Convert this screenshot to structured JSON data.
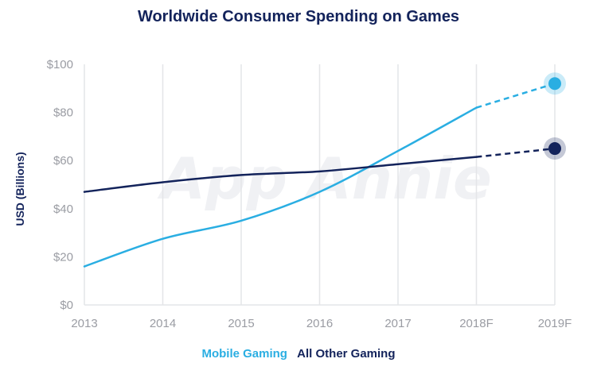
{
  "chart_data": {
    "type": "line",
    "title": "Worldwide Consumer Spending on Games",
    "ylabel": "USD (Billions)",
    "xlabel": "",
    "categories": [
      "2013",
      "2014",
      "2015",
      "2016",
      "2017",
      "2018F",
      "2019F"
    ],
    "y_ticks": [
      "$0",
      "$20",
      "$40",
      "$60",
      "$80",
      "$100"
    ],
    "ylim": [
      0,
      100
    ],
    "grid": "vertical",
    "watermark": "App Annie",
    "legend_position": "bottom",
    "series": [
      {
        "name": "Mobile Gaming",
        "color": "#2aaee2",
        "values": [
          16,
          27.5,
          35,
          47,
          64,
          82,
          92
        ],
        "forecast_from_index": 5
      },
      {
        "name": "All Other Gaming",
        "color": "#13235b",
        "values": [
          47,
          51,
          54,
          55.5,
          58.5,
          61.5,
          65
        ],
        "forecast_from_index": 5
      }
    ]
  }
}
